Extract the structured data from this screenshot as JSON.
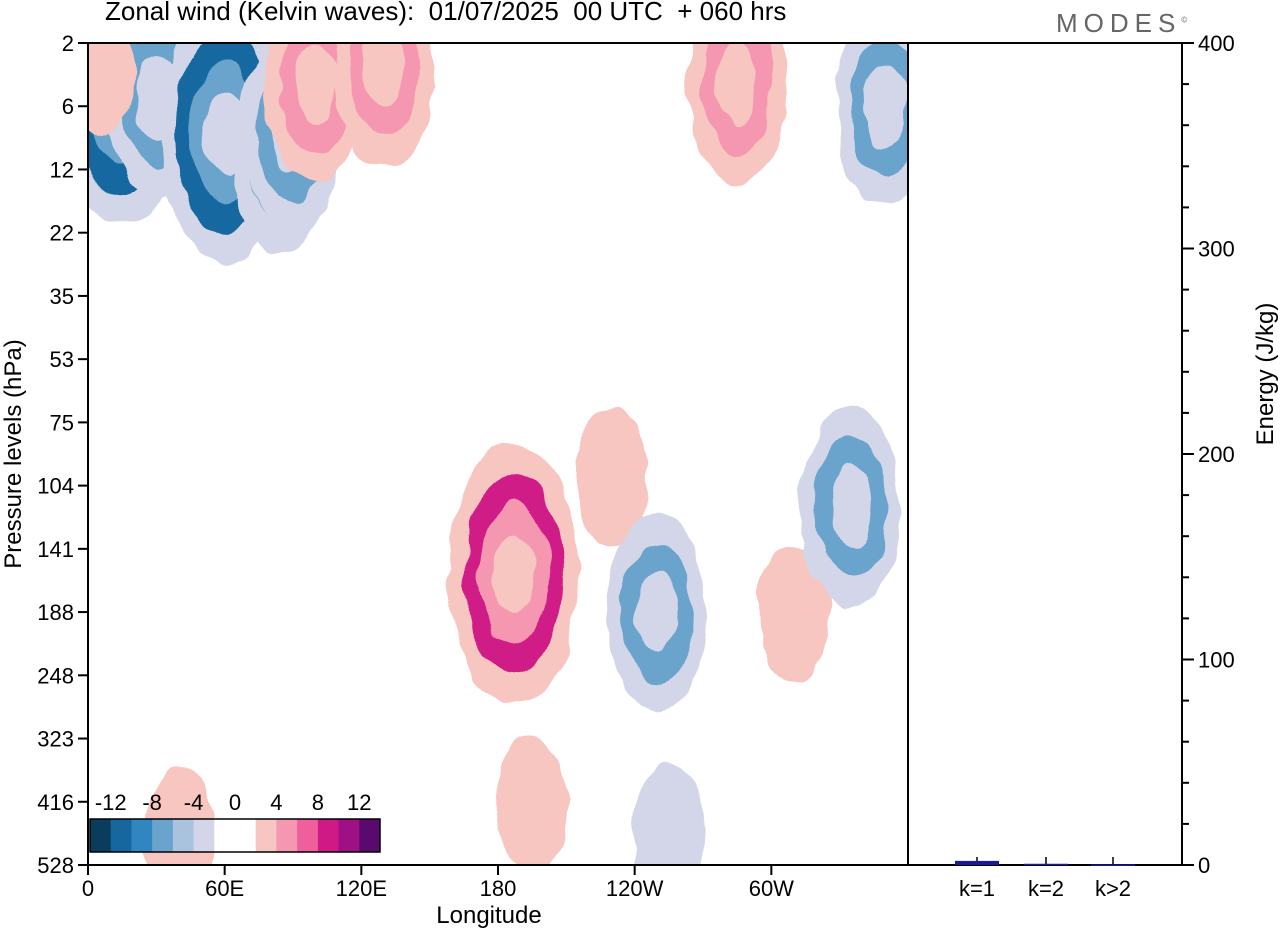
{
  "header": {
    "title": "Zonal wind (Kelvin waves):  01/07/2025  00 UTC  + 060 hrs",
    "brand": "MODES",
    "brand_mark": "©"
  },
  "colors": {
    "scale": [
      "#0a3d5c",
      "#1667a0",
      "#2f86c0",
      "#6aa3cc",
      "#a9c2de",
      "#d3d6e9",
      "#ffffff",
      "#ffffff",
      "#f8c6c0",
      "#f597b0",
      "#ef5f9c",
      "#cf1a86",
      "#a01085",
      "#5a0a6e"
    ],
    "bar": "#1a1a9a",
    "frame": "#000000"
  },
  "chart_data": [
    {
      "type": "heatmap",
      "title": "Zonal wind (Kelvin waves):  01/07/2025  00 UTC  + 060 hrs",
      "xlabel": "Longitude",
      "ylabel": "Pressure levels (hPa)",
      "x_ticks": [
        {
          "lon": 0,
          "label": "0"
        },
        {
          "lon": 60,
          "label": "60E"
        },
        {
          "lon": 120,
          "label": "120E"
        },
        {
          "lon": 180,
          "label": "180"
        },
        {
          "lon": 240,
          "label": "120W"
        },
        {
          "lon": 300,
          "label": "60W"
        }
      ],
      "xlim": [
        0,
        360
      ],
      "y_levels": [
        "2",
        "6",
        "12",
        "22",
        "35",
        "53",
        "75",
        "104",
        "141",
        "188",
        "248",
        "323",
        "416",
        "528"
      ],
      "colorbar": {
        "labels": [
          "-12",
          "-8",
          "-4",
          "0",
          "4",
          "8",
          "12"
        ],
        "bins": 14
      },
      "features": [
        {
          "lon": 15,
          "level": 5,
          "value": -12
        },
        {
          "lon": 30,
          "level": 5,
          "value": -8
        },
        {
          "lon": 5,
          "level": 3,
          "value": 4
        },
        {
          "lon": 55,
          "level": 9,
          "value": -8
        },
        {
          "lon": 60,
          "level": 8,
          "value": -12
        },
        {
          "lon": 85,
          "level": 10,
          "value": -8
        },
        {
          "lon": 90,
          "level": 8,
          "value": -8
        },
        {
          "lon": 100,
          "level": 4,
          "value": 8
        },
        {
          "lon": 130,
          "level": 3,
          "value": 8
        },
        {
          "lon": 180,
          "level": 158,
          "value": 8
        },
        {
          "lon": 187,
          "level": 158,
          "value": 12
        },
        {
          "lon": 230,
          "level": 100,
          "value": 4
        },
        {
          "lon": 250,
          "level": 188,
          "value": -8
        },
        {
          "lon": 285,
          "level": 4,
          "value": 8
        },
        {
          "lon": 310,
          "level": 188,
          "value": 4
        },
        {
          "lon": 335,
          "level": 115,
          "value": -8
        },
        {
          "lon": 350,
          "level": 6,
          "value": -8
        },
        {
          "lon": 40,
          "level": 480,
          "value": 4
        },
        {
          "lon": 195,
          "level": 420,
          "value": 4
        },
        {
          "lon": 255,
          "level": 470,
          "value": -4
        }
      ]
    },
    {
      "type": "bar",
      "categories": [
        "k=1",
        "k=2",
        "k>2"
      ],
      "values": [
        2.0,
        0.6,
        0.3
      ],
      "ylabel": "Energy (J/kg)",
      "ylim": [
        0,
        400
      ],
      "y_ticks": [
        0,
        100,
        200,
        300,
        400
      ]
    }
  ]
}
